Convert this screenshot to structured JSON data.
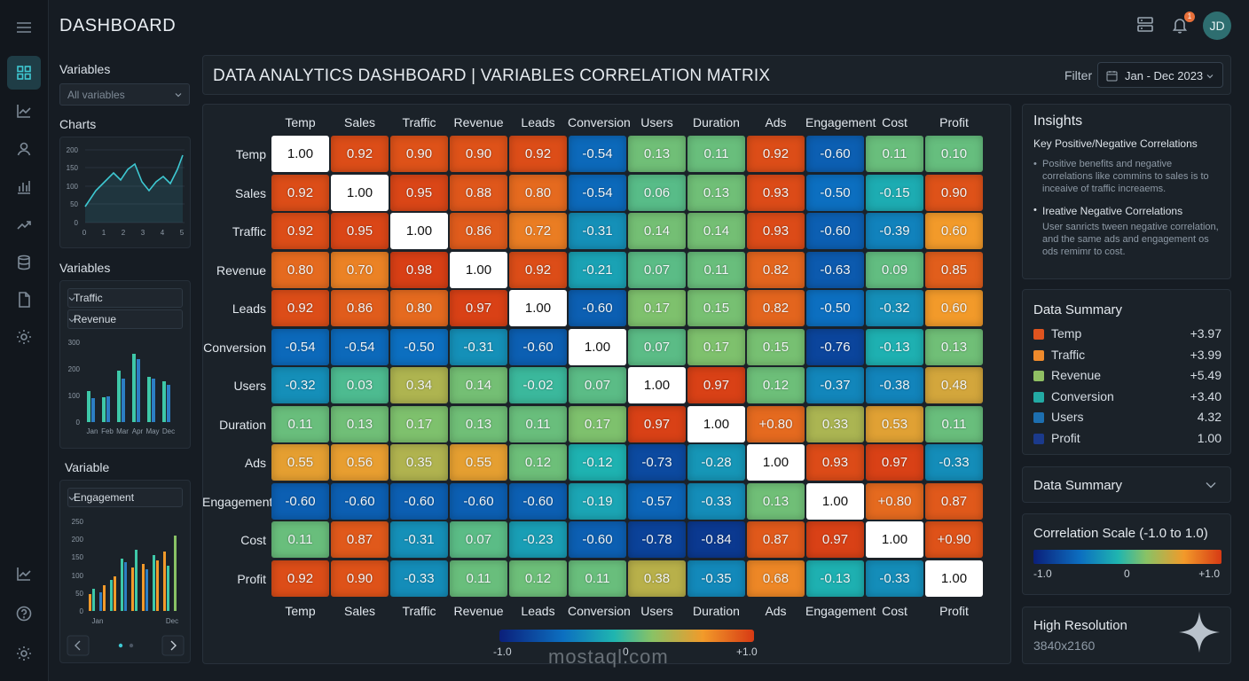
{
  "header": {
    "app_title": "DASHBOARD",
    "notification_count": "1",
    "avatar_initials": "JD"
  },
  "sidebar": {
    "variables_label": "Variables",
    "variables_placeholder": "All variables",
    "charts_label": "Charts",
    "line_chart": {
      "y_ticks": [
        "200",
        "150",
        "100",
        "50",
        "0"
      ],
      "x_ticks": [
        "0",
        "1",
        "2",
        "3",
        "4",
        "5"
      ]
    },
    "variables2_label": "Variables",
    "select_a": "Traffic",
    "select_b": "Revenue",
    "bar_chart": {
      "y_ticks": [
        "300",
        "200",
        "100",
        "0"
      ],
      "x_ticks": [
        "Jan",
        "Feb",
        "Mar",
        "Apr",
        "May",
        "Dec"
      ]
    },
    "variable_label": "Variable",
    "select_c": "Engagement",
    "bar_chart2": {
      "y_ticks": [
        "250",
        "200",
        "150",
        "100",
        "50",
        "0"
      ],
      "x_ticks": [
        "Jan",
        "Dec"
      ]
    }
  },
  "main": {
    "title": "DATA ANALYTICS DASHBOARD |  VARIABLES CORRELATION MATRIX",
    "filter_label": "Filter",
    "filter_value": "Jan - Dec 2023"
  },
  "chart_data": {
    "type": "heatmap",
    "title": "Variables Correlation Matrix",
    "variables": [
      "Temp",
      "Sales",
      "Traffic",
      "Revenue",
      "Leads",
      "Conversion",
      "Users",
      "Duration",
      "Ads",
      "Engagement",
      "Cost",
      "Profit"
    ],
    "cells": [
      [
        "1.00",
        "0.92",
        "0.90",
        "0.90",
        "0.92",
        "-0.54",
        "0.13",
        "0.11",
        "0.92",
        "-0.60",
        "0.11",
        "0.10"
      ],
      [
        "0.92",
        "1.00",
        "0.95",
        "0.88",
        "0.80",
        "-0.54",
        "0.06",
        "0.13",
        "0.93",
        "-0.50",
        "-0.15",
        "0.90"
      ],
      [
        "0.92",
        "0.95",
        "1.00",
        "0.86",
        "0.72",
        "-0.31",
        "0.14",
        "0.14",
        "0.93",
        "-0.60",
        "-0.39",
        "0.60"
      ],
      [
        "0.80",
        "0.70",
        "0.98",
        "1.00",
        "0.92",
        "-0.21",
        "0.07",
        "0.11",
        "0.82",
        "-0.63",
        "0.09",
        "0.85"
      ],
      [
        "0.92",
        "0.86",
        "0.80",
        "0.97",
        "1.00",
        "-0.60",
        "0.17",
        "0.15",
        "0.82",
        "-0.50",
        "-0.32",
        "0.60"
      ],
      [
        "-0.54",
        "-0.54",
        "-0.50",
        "-0.31",
        "-0.60",
        "1.00",
        "0.07",
        "0.17",
        "0.15",
        "-0.76",
        "-0.13",
        "0.13"
      ],
      [
        "-0.32",
        "0.03",
        "0.34",
        "0.14",
        "-0.02",
        "0.07",
        "1.00",
        "0.97",
        "0.12",
        "-0.37",
        "-0.38",
        "0.48"
      ],
      [
        "0.11",
        "0.13",
        "0.17",
        "0.13",
        "0.11",
        "0.17",
        "0.97",
        "1.00",
        "+0.80",
        "0.33",
        "0.53",
        "0.11"
      ],
      [
        "0.55",
        "0.56",
        "0.35",
        "0.55",
        "0.12",
        "-0.12",
        "-0.73",
        "-0.28",
        "1.00",
        "0.93",
        "0.97",
        "-0.33"
      ],
      [
        "-0.60",
        "-0.60",
        "-0.60",
        "-0.60",
        "-0.60",
        "-0.19",
        "-0.57",
        "-0.33",
        "0.13",
        "1.00",
        "+0.80",
        "0.87"
      ],
      [
        "0.11",
        "0.87",
        "-0.31",
        "0.07",
        "-0.23",
        "-0.60",
        "-0.78",
        "-0.84",
        "0.87",
        "0.97",
        "1.00",
        "+0.90"
      ],
      [
        "0.92",
        "0.90",
        "-0.33",
        "0.11",
        "0.12",
        "0.11",
        "0.38",
        "-0.35",
        "0.68",
        "-0.13",
        "-0.33",
        "1.00"
      ]
    ],
    "scale_min": "-1.0",
    "scale_mid": "0",
    "scale_max": "+1.0"
  },
  "watermark": "mostaql.com",
  "insights": {
    "title": "Insights",
    "subtitle": "Key Positive/Negative Correlations",
    "text1": "Positive benefits and negative correlations like commins to sales is to inceaive of traffic increaems.",
    "subtitle2": "Ireative Negative Correlations",
    "text2": "User sanricts tween negative correlation, and the same ads and engagement os ods remimr to cost."
  },
  "data_summary": {
    "title": "Data Summary",
    "rows": [
      {
        "name": "Temp",
        "value": "+3.97",
        "color": "#e0541f"
      },
      {
        "name": "Traffic",
        "value": "+3.99",
        "color": "#ef8a2c"
      },
      {
        "name": "Revenue",
        "value": "+5.49",
        "color": "#8fbf63"
      },
      {
        "name": "Conversion",
        "value": "+3.40",
        "color": "#23aaa4"
      },
      {
        "name": "Users",
        "value": "4.32",
        "color": "#1d6fb0"
      },
      {
        "name": "Profit",
        "value": "1.00",
        "color": "#1b3a8c"
      }
    ]
  },
  "data_summary2": {
    "title": "Data Summary"
  },
  "correlation_scale": {
    "title": "Correlation Scale (-1.0 to 1.0)",
    "min": "-1.0",
    "mid": "0",
    "max": "+1.0"
  },
  "resolution": {
    "title": "High Resolution",
    "value": "3840x2160"
  }
}
